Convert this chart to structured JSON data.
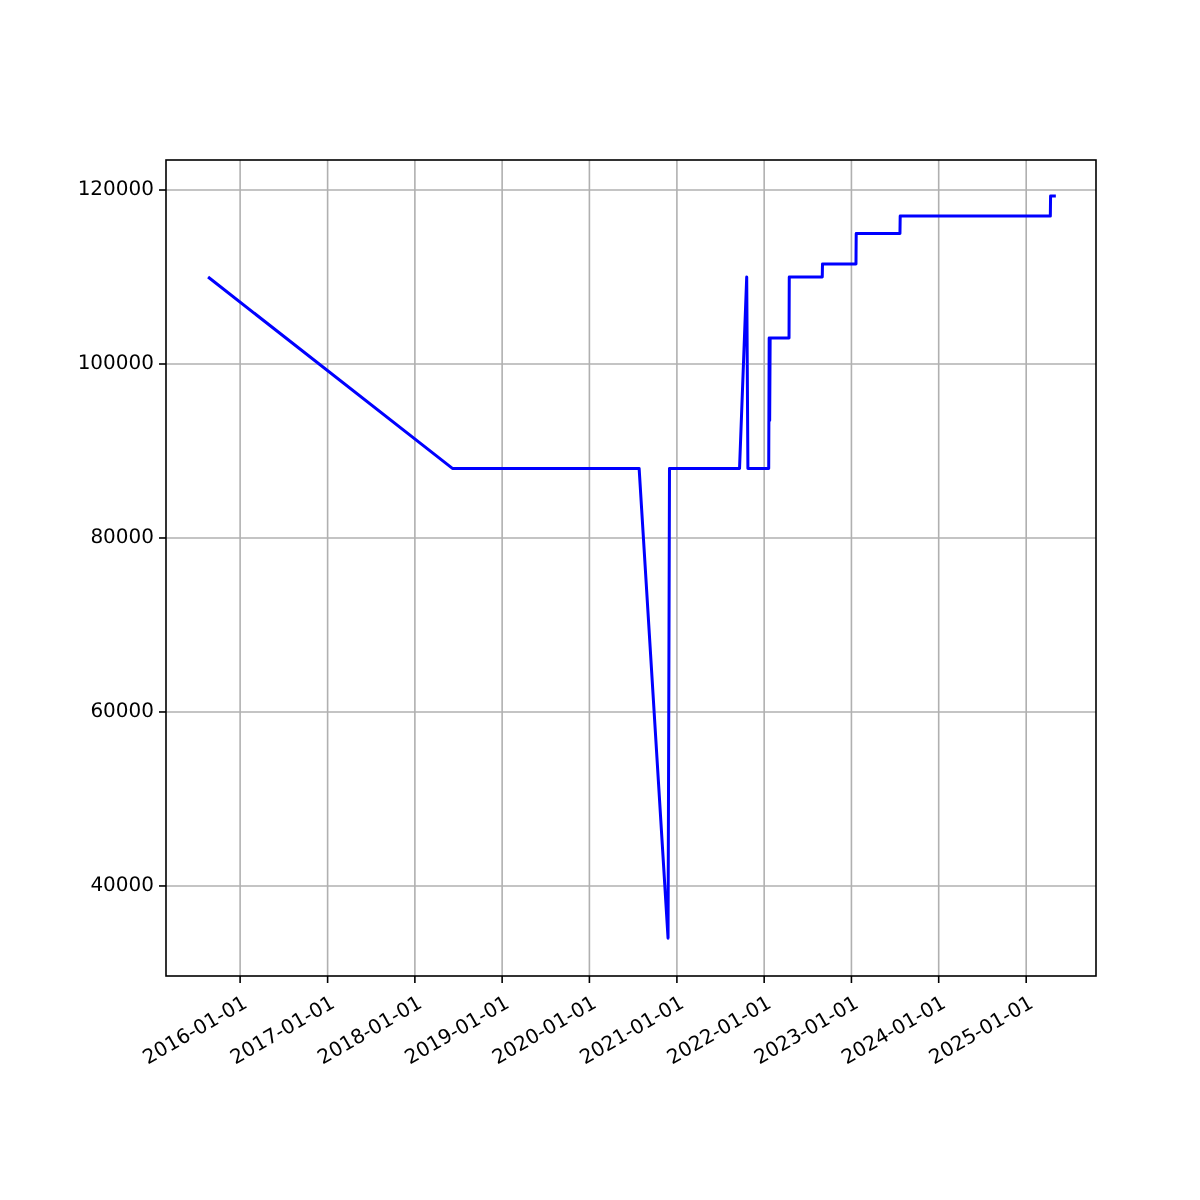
{
  "chart_data": {
    "type": "line",
    "x": [
      "2015-08-20",
      "2018-06-07",
      "2020-07-27",
      "2020-11-25",
      "2020-12-01",
      "2021-09-20",
      "2021-10-20",
      "2021-10-25",
      "2022-01-20",
      "2022-01-22",
      "2022-01-24",
      "2022-01-26",
      "2022-04-15",
      "2022-04-16",
      "2022-09-01",
      "2022-09-02",
      "2023-01-20",
      "2023-01-21",
      "2023-07-23",
      "2023-07-24",
      "2025-04-12",
      "2025-04-13",
      "2025-05-05"
    ],
    "series": [
      {
        "color": "#0000ff",
        "values": [
          110000,
          88000,
          88000,
          34000,
          88000,
          88000,
          110000,
          88000,
          88000,
          103000,
          93500,
          103000,
          103000,
          110000,
          110000,
          111500,
          111500,
          115000,
          115000,
          117000,
          117000,
          119300,
          119300
        ]
      }
    ],
    "xlim": [
      "2015-02-25",
      "2025-10-20"
    ],
    "ylim": [
      29650,
      123450
    ],
    "xticks": [
      {
        "value": "2016-01-01",
        "label": "2016-01-01"
      },
      {
        "value": "2017-01-01",
        "label": "2017-01-01"
      },
      {
        "value": "2018-01-01",
        "label": "2018-01-01"
      },
      {
        "value": "2019-01-01",
        "label": "2019-01-01"
      },
      {
        "value": "2020-01-01",
        "label": "2020-01-01"
      },
      {
        "value": "2021-01-01",
        "label": "2021-01-01"
      },
      {
        "value": "2022-01-01",
        "label": "2022-01-01"
      },
      {
        "value": "2023-01-01",
        "label": "2023-01-01"
      },
      {
        "value": "2024-01-01",
        "label": "2024-01-01"
      },
      {
        "value": "2025-01-01",
        "label": "2025-01-01"
      }
    ],
    "yticks": [
      40000,
      60000,
      80000,
      100000,
      120000
    ],
    "grid": true
  }
}
